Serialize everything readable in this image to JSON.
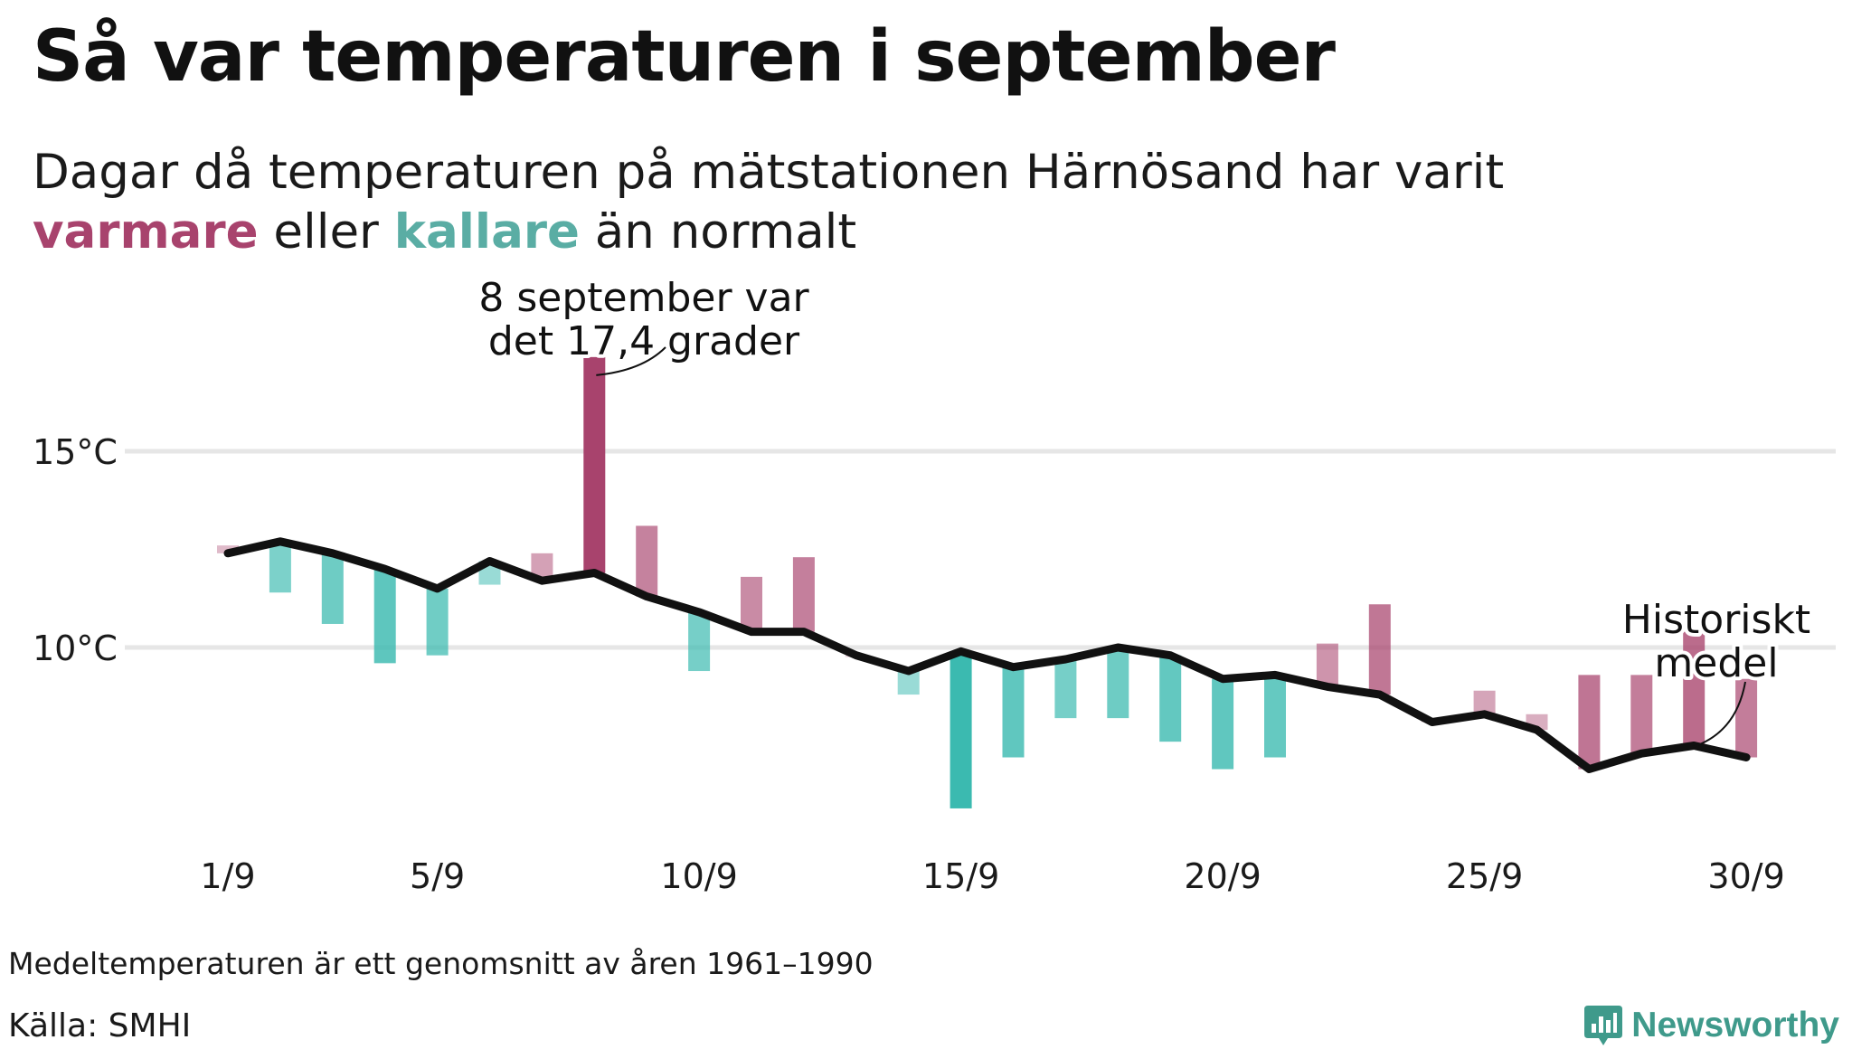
{
  "title": "Så var temperaturen i september",
  "subtitle": {
    "line1": "Dagar då temperaturen på mätstationen Härnösand har varit",
    "warm_word": "varmare",
    "mid_word": "eller",
    "cold_word": "kallare",
    "end_word": "än normalt"
  },
  "colors": {
    "warm": "#a8436d",
    "cold": "#3bbab0",
    "average_line": "#111111",
    "grid": "#e6e6e6"
  },
  "chart_data": {
    "type": "bar",
    "y_unit": "°C",
    "ylim": [
      5.5,
      18
    ],
    "grid": "horizontal",
    "yticks": [
      {
        "value": 10,
        "label": "10°C"
      },
      {
        "value": 15,
        "label": "15°C"
      }
    ],
    "xticks": [
      {
        "day": 1,
        "label": "1/9"
      },
      {
        "day": 5,
        "label": "5/9"
      },
      {
        "day": 10,
        "label": "10/9"
      },
      {
        "day": 15,
        "label": "15/9"
      },
      {
        "day": 20,
        "label": "20/9"
      },
      {
        "day": 25,
        "label": "25/9"
      },
      {
        "day": 30,
        "label": "30/9"
      }
    ],
    "days": [
      1,
      2,
      3,
      4,
      5,
      6,
      7,
      8,
      9,
      10,
      11,
      12,
      13,
      14,
      15,
      16,
      17,
      18,
      19,
      20,
      21,
      22,
      23,
      24,
      25,
      26,
      27,
      28,
      29,
      30
    ],
    "series": [
      {
        "name": "Temperatur",
        "values": [
          12.6,
          11.4,
          10.6,
          9.6,
          9.8,
          11.6,
          12.4,
          17.4,
          13.1,
          9.4,
          11.8,
          12.3,
          9.8,
          8.8,
          5.9,
          7.2,
          8.2,
          8.2,
          7.6,
          6.9,
          7.2,
          10.1,
          11.1,
          8.2,
          8.9,
          8.3,
          9.3,
          9.3,
          10.4,
          9.2
        ]
      },
      {
        "name": "Historiskt medel",
        "values": [
          12.4,
          12.7,
          12.4,
          12.0,
          11.5,
          12.2,
          11.7,
          11.9,
          11.3,
          10.9,
          10.4,
          10.4,
          9.8,
          9.4,
          9.9,
          9.5,
          9.7,
          10.0,
          9.8,
          9.2,
          9.3,
          9.0,
          8.8,
          8.1,
          8.3,
          7.9,
          6.9,
          7.3,
          7.5,
          7.2
        ]
      }
    ],
    "annotations": [
      {
        "day": 8,
        "lines": [
          "8 september var",
          "det 17,4 grader"
        ]
      },
      {
        "day": 30,
        "lines": [
          "Historiskt",
          "medel"
        ]
      }
    ]
  },
  "note": "Medeltemperaturen är ett genomsnitt av åren 1961–1990",
  "source": "Källa: SMHI",
  "brand": "Newsworthy",
  "brand_icon": "newsworthy-logo-icon"
}
